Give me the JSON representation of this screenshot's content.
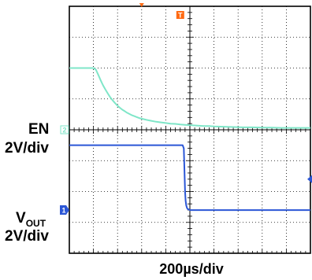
{
  "chart_data": {
    "type": "line",
    "xlabel": "200µs/div",
    "x_scale": "200µs/div",
    "x_divisions": 10,
    "y_divisions": 8,
    "xlim": [
      -600,
      1400
    ],
    "x_unit": "µs",
    "grid": true,
    "channels": [
      {
        "name": "EN",
        "scale": "2V/div",
        "marker": "2",
        "color": "#7fe6c8",
        "reference_div": 0.0,
        "x": [
          -600,
          -560,
          -520,
          -480,
          -440,
          -400,
          -380,
          -360,
          -340,
          -320,
          -300,
          -280,
          -260,
          -240,
          -220,
          -200,
          -180,
          -160,
          -140,
          -120,
          -100,
          -80,
          -60,
          -40,
          -20,
          0,
          40,
          80,
          120,
          160,
          200,
          240,
          280,
          320,
          360,
          400,
          440,
          480,
          520,
          560,
          600,
          680,
          760,
          840,
          920,
          1000,
          1080,
          1160,
          1240,
          1320,
          1400
        ],
        "y_div": [
          2.0,
          2.0,
          2.0,
          2.0,
          2.0,
          2.0,
          1.95,
          1.78,
          1.6,
          1.44,
          1.3,
          1.17,
          1.05,
          0.95,
          0.86,
          0.78,
          0.71,
          0.65,
          0.6,
          0.55,
          0.51,
          0.47,
          0.44,
          0.41,
          0.38,
          0.36,
          0.32,
          0.29,
          0.26,
          0.24,
          0.22,
          0.2,
          0.19,
          0.17,
          0.16,
          0.15,
          0.14,
          0.13,
          0.12,
          0.12,
          0.11,
          0.1,
          0.09,
          0.08,
          0.08,
          0.07,
          0.07,
          0.06,
          0.06,
          0.06,
          0.06
        ]
      },
      {
        "name": "VOUT",
        "name_main": "V",
        "name_sub": "OUT",
        "scale": "2V/div",
        "marker": "1",
        "color": "#2b56d6",
        "reference_div": -2.6,
        "x": [
          -600,
          -400,
          -200,
          0,
          200,
          340,
          350,
          355,
          360,
          365,
          370,
          375,
          380,
          390,
          400,
          420,
          450,
          500,
          600,
          800,
          1000,
          1200,
          1400
        ],
        "y_div": [
          -0.5,
          -0.5,
          -0.5,
          -0.5,
          -0.5,
          -0.5,
          -0.6,
          -1.3,
          -2.0,
          -2.3,
          -2.45,
          -2.52,
          -2.56,
          -2.58,
          -2.6,
          -2.6,
          -2.6,
          -2.6,
          -2.6,
          -2.6,
          -2.6,
          -2.6,
          -2.6
        ]
      }
    ],
    "trigger_marker": "T",
    "trigger_color": "#ff6a13",
    "trigger_x": 0,
    "level_marker_color": "#2b56d6",
    "level_marker_div": -1.6
  }
}
